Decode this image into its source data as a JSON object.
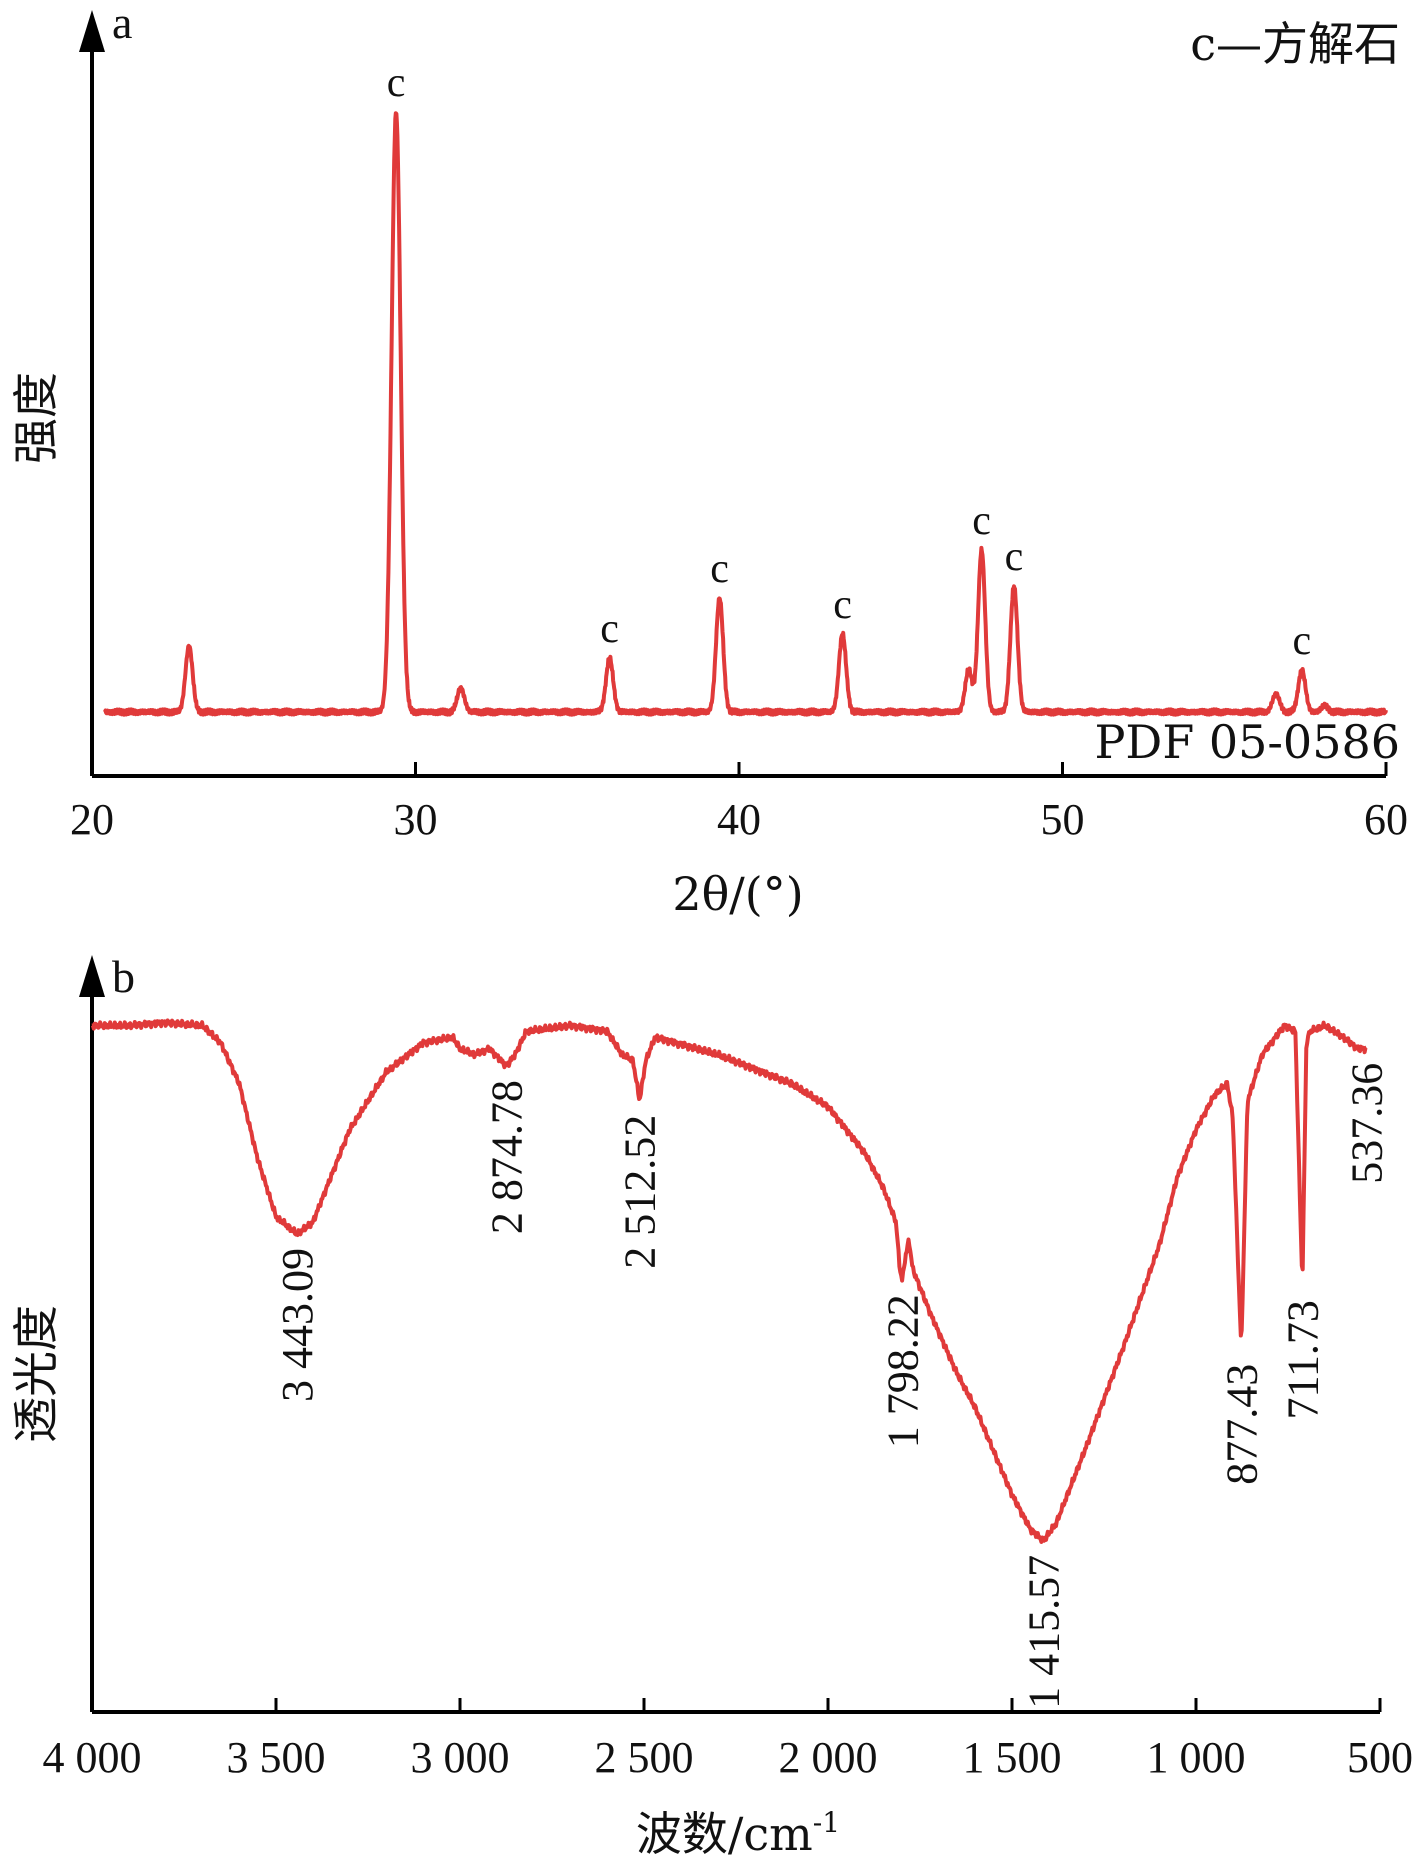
{
  "chart_data": [
    {
      "type": "line",
      "panel_label": "a",
      "xlabel": "2θ/(°)",
      "ylabel": "强度",
      "xlim": [
        20,
        60
      ],
      "xticks": [
        "20",
        "30",
        "40",
        "50",
        "60"
      ],
      "xtick_values": [
        20,
        30,
        40,
        50,
        60
      ],
      "legend": "c—方解石",
      "reference": "PDF 05-0586",
      "color": "#e03a3a",
      "baseline": 0,
      "peaks": [
        {
          "x": 23.0,
          "y": 11,
          "label": ""
        },
        {
          "x": 29.4,
          "y": 100,
          "label": "c"
        },
        {
          "x": 31.4,
          "y": 4,
          "label": ""
        },
        {
          "x": 36.0,
          "y": 9,
          "label": "c"
        },
        {
          "x": 39.4,
          "y": 19,
          "label": "c"
        },
        {
          "x": 43.2,
          "y": 13,
          "label": "c"
        },
        {
          "x": 47.1,
          "y": 7,
          "label": ""
        },
        {
          "x": 47.5,
          "y": 27,
          "label": "c"
        },
        {
          "x": 48.5,
          "y": 21,
          "label": "c"
        },
        {
          "x": 56.6,
          "y": 3,
          "label": ""
        },
        {
          "x": 57.4,
          "y": 7,
          "label": "c"
        },
        {
          "x": 58.1,
          "y": 1,
          "label": ""
        }
      ]
    },
    {
      "type": "line",
      "panel_label": "b",
      "xlabel": "波数/cm",
      "xlabel_sup": "-1",
      "ylabel": "透光度",
      "xlim": [
        4000,
        500
      ],
      "xticks": [
        "4 000",
        "3 500",
        "3 000",
        "2 500",
        "2 000",
        "1 500",
        "1 000",
        "500"
      ],
      "xtick_values": [
        4000,
        3500,
        3000,
        2500,
        2000,
        1500,
        1000,
        500
      ],
      "color": "#e03a3a",
      "ylim": [
        0,
        100
      ],
      "points": [
        [
          4000,
          98
        ],
        [
          3900,
          98
        ],
        [
          3800,
          98.5
        ],
        [
          3700,
          98
        ],
        [
          3650,
          95
        ],
        [
          3600,
          88
        ],
        [
          3550,
          75
        ],
        [
          3500,
          65
        ],
        [
          3443,
          62
        ],
        [
          3400,
          64
        ],
        [
          3350,
          72
        ],
        [
          3300,
          80
        ],
        [
          3200,
          90
        ],
        [
          3100,
          95
        ],
        [
          3020,
          96
        ],
        [
          3000,
          94
        ],
        [
          2960,
          93
        ],
        [
          2920,
          94
        ],
        [
          2874,
          91
        ],
        [
          2850,
          93
        ],
        [
          2820,
          97
        ],
        [
          2700,
          98
        ],
        [
          2600,
          97
        ],
        [
          2560,
          93
        ],
        [
          2530,
          92
        ],
        [
          2512,
          85
        ],
        [
          2495,
          92
        ],
        [
          2470,
          96
        ],
        [
          2300,
          93
        ],
        [
          2100,
          88
        ],
        [
          2000,
          84
        ],
        [
          1900,
          76
        ],
        [
          1850,
          70
        ],
        [
          1815,
          64
        ],
        [
          1805,
          56
        ],
        [
          1798,
          54
        ],
        [
          1790,
          58
        ],
        [
          1780,
          61
        ],
        [
          1770,
          56
        ],
        [
          1720,
          48
        ],
        [
          1650,
          38
        ],
        [
          1600,
          32
        ],
        [
          1560,
          26
        ],
        [
          1500,
          17
        ],
        [
          1450,
          11
        ],
        [
          1415,
          9
        ],
        [
          1380,
          12
        ],
        [
          1300,
          25
        ],
        [
          1200,
          42
        ],
        [
          1100,
          60
        ],
        [
          1050,
          72
        ],
        [
          1000,
          80
        ],
        [
          950,
          86
        ],
        [
          915,
          88
        ],
        [
          900,
          82
        ],
        [
          877,
          42
        ],
        [
          860,
          85
        ],
        [
          820,
          93
        ],
        [
          760,
          98
        ],
        [
          730,
          97
        ],
        [
          711,
          53
        ],
        [
          700,
          95
        ],
        [
          690,
          97
        ],
        [
          650,
          98
        ],
        [
          600,
          96
        ],
        [
          560,
          94
        ],
        [
          537,
          94
        ]
      ],
      "peak_labels": [
        {
          "x": 3443,
          "label": "3 443.09"
        },
        {
          "x": 2874,
          "label": "2 874.78"
        },
        {
          "x": 2512,
          "label": "2 512.52"
        },
        {
          "x": 1798,
          "label": "1 798.22"
        },
        {
          "x": 1415,
          "label": "1 415.57"
        },
        {
          "x": 877,
          "label": "877.43"
        },
        {
          "x": 711,
          "label": "711.73"
        },
        {
          "x": 537,
          "label": "537.36"
        }
      ]
    }
  ]
}
